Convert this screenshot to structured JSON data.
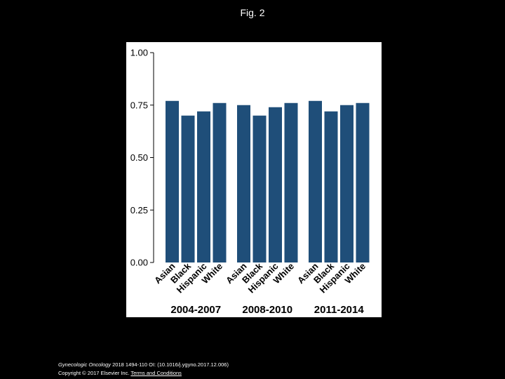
{
  "slide": {
    "title": "Fig. 2"
  },
  "footer": {
    "journal": "Gynecologic Oncology",
    "citation": " 2018 1494-110 OI: (10.1016/j.ygyno.2017.12.006)",
    "copyright": "Copyright © 2017 Elsevier Inc.",
    "terms_link": "Terms and Conditions"
  },
  "colors": {
    "bar": "#1f4e79",
    "background": "#000000",
    "panel": "#ffffff"
  },
  "chart_data": {
    "type": "bar",
    "title": "",
    "xlabel": "",
    "ylabel": "",
    "ylim": [
      0,
      1
    ],
    "yticks": [
      0,
      0.25,
      0.5,
      0.75,
      1
    ],
    "ytick_labels": [
      "0.00",
      "0.25",
      "0.50",
      "0.75",
      "1.00"
    ],
    "grid": false,
    "groups": [
      {
        "label": "2004-2007",
        "categories": [
          "Asian",
          "Black",
          "Hispanic",
          "White"
        ],
        "values": [
          0.77,
          0.7,
          0.72,
          0.76
        ]
      },
      {
        "label": "2008-2010",
        "categories": [
          "Asian",
          "Black",
          "Hispanic",
          "White"
        ],
        "values": [
          0.75,
          0.7,
          0.74,
          0.76
        ]
      },
      {
        "label": "2011-2014",
        "categories": [
          "Asian",
          "Black",
          "Hispanic",
          "White"
        ],
        "values": [
          0.77,
          0.72,
          0.75,
          0.76
        ]
      }
    ]
  }
}
